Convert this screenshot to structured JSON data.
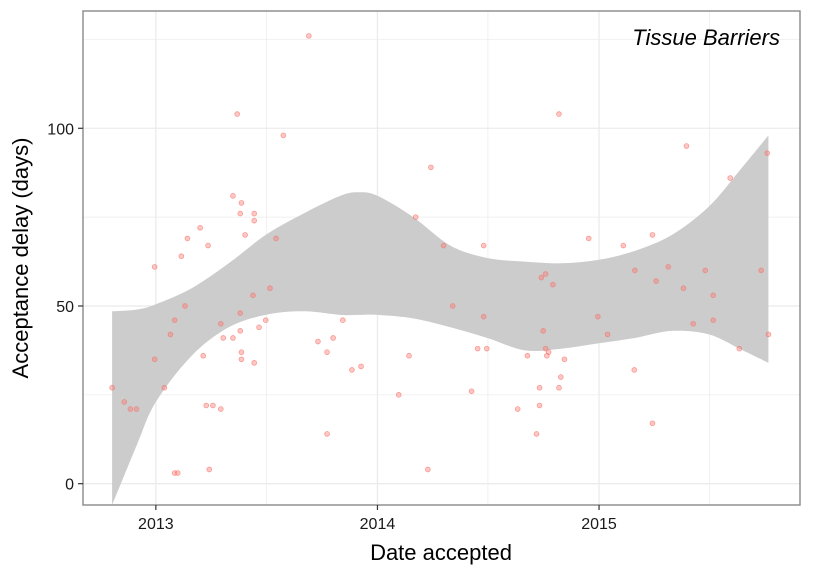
{
  "chart_data": {
    "type": "scatter",
    "title": "",
    "annotation": "Tissue Barriers",
    "xlabel": "Date accepted",
    "ylabel": "Acceptance delay (days)",
    "x_ticks": [
      "2013",
      "2014",
      "2015"
    ],
    "y_ticks": [
      0,
      50,
      100
    ],
    "xlim": [
      "2012-09-03",
      "2015-11-28"
    ],
    "ylim": [
      -6,
      133
    ],
    "grid": true,
    "legend": "none",
    "colors": {
      "points": "#f8766d",
      "ribbon": "#cccccc",
      "panel_border": "#888888",
      "grid": "#ebebeb"
    },
    "points": [
      {
        "x": "2012-10-21",
        "y": 27
      },
      {
        "x": "2012-11-10",
        "y": 23
      },
      {
        "x": "2012-11-20",
        "y": 21
      },
      {
        "x": "2012-11-30",
        "y": 21
      },
      {
        "x": "2012-12-30",
        "y": 61
      },
      {
        "x": "2012-12-30",
        "y": 35
      },
      {
        "x": "2013-01-15",
        "y": 27
      },
      {
        "x": "2013-01-25",
        "y": 42
      },
      {
        "x": "2013-02-01",
        "y": 46
      },
      {
        "x": "2013-02-01",
        "y": 3
      },
      {
        "x": "2013-02-06",
        "y": 3
      },
      {
        "x": "2013-02-12",
        "y": 64
      },
      {
        "x": "2013-02-18",
        "y": 50
      },
      {
        "x": "2013-02-22",
        "y": 69
      },
      {
        "x": "2013-03-15",
        "y": 72
      },
      {
        "x": "2013-03-20",
        "y": 36
      },
      {
        "x": "2013-03-25",
        "y": 22
      },
      {
        "x": "2013-03-28",
        "y": 67
      },
      {
        "x": "2013-03-30",
        "y": 4
      },
      {
        "x": "2013-04-05",
        "y": 22
      },
      {
        "x": "2013-04-18",
        "y": 45
      },
      {
        "x": "2013-04-18",
        "y": 21
      },
      {
        "x": "2013-04-22",
        "y": 41
      },
      {
        "x": "2013-05-08",
        "y": 81
      },
      {
        "x": "2013-05-08",
        "y": 41
      },
      {
        "x": "2013-05-15",
        "y": 104
      },
      {
        "x": "2013-05-20",
        "y": 48
      },
      {
        "x": "2013-05-20",
        "y": 43
      },
      {
        "x": "2013-05-20",
        "y": 76
      },
      {
        "x": "2013-05-22",
        "y": 79
      },
      {
        "x": "2013-05-22",
        "y": 35
      },
      {
        "x": "2013-05-22",
        "y": 37
      },
      {
        "x": "2013-05-28",
        "y": 70
      },
      {
        "x": "2013-06-10",
        "y": 53
      },
      {
        "x": "2013-06-12",
        "y": 76
      },
      {
        "x": "2013-06-12",
        "y": 74
      },
      {
        "x": "2013-06-12",
        "y": 34
      },
      {
        "x": "2013-06-20",
        "y": 44
      },
      {
        "x": "2013-07-01",
        "y": 46
      },
      {
        "x": "2013-07-08",
        "y": 55
      },
      {
        "x": "2013-07-18",
        "y": 69
      },
      {
        "x": "2013-07-30",
        "y": 98
      },
      {
        "x": "2013-09-10",
        "y": 126
      },
      {
        "x": "2013-09-25",
        "y": 40
      },
      {
        "x": "2013-10-10",
        "y": 37
      },
      {
        "x": "2013-10-10",
        "y": 14
      },
      {
        "x": "2013-10-20",
        "y": 41
      },
      {
        "x": "2013-11-05",
        "y": 46
      },
      {
        "x": "2013-11-20",
        "y": 32
      },
      {
        "x": "2013-12-05",
        "y": 33
      },
      {
        "x": "2014-02-05",
        "y": 25
      },
      {
        "x": "2014-02-22",
        "y": 36
      },
      {
        "x": "2014-03-05",
        "y": 75
      },
      {
        "x": "2014-03-25",
        "y": 4
      },
      {
        "x": "2014-03-30",
        "y": 89
      },
      {
        "x": "2014-04-20",
        "y": 67
      },
      {
        "x": "2014-05-05",
        "y": 50
      },
      {
        "x": "2014-06-05",
        "y": 26
      },
      {
        "x": "2014-06-15",
        "y": 38
      },
      {
        "x": "2014-06-25",
        "y": 67
      },
      {
        "x": "2014-06-25",
        "y": 47
      },
      {
        "x": "2014-06-30",
        "y": 38
      },
      {
        "x": "2014-08-20",
        "y": 21
      },
      {
        "x": "2014-09-05",
        "y": 36
      },
      {
        "x": "2014-09-20",
        "y": 14
      },
      {
        "x": "2014-09-25",
        "y": 27
      },
      {
        "x": "2014-09-25",
        "y": 22
      },
      {
        "x": "2014-09-28",
        "y": 58
      },
      {
        "x": "2014-10-01",
        "y": 43
      },
      {
        "x": "2014-10-05",
        "y": 59
      },
      {
        "x": "2014-10-05",
        "y": 38
      },
      {
        "x": "2014-10-07",
        "y": 36
      },
      {
        "x": "2014-10-10",
        "y": 37
      },
      {
        "x": "2014-10-17",
        "y": 56
      },
      {
        "x": "2014-10-27",
        "y": 104
      },
      {
        "x": "2014-10-27",
        "y": 27
      },
      {
        "x": "2014-10-30",
        "y": 30
      },
      {
        "x": "2014-11-05",
        "y": 35
      },
      {
        "x": "2014-12-15",
        "y": 69
      },
      {
        "x": "2014-12-30",
        "y": 47
      },
      {
        "x": "2015-01-15",
        "y": 42
      },
      {
        "x": "2015-02-10",
        "y": 67
      },
      {
        "x": "2015-02-28",
        "y": 32
      },
      {
        "x": "2015-03-01",
        "y": 60
      },
      {
        "x": "2015-03-30",
        "y": 17
      },
      {
        "x": "2015-03-30",
        "y": 70
      },
      {
        "x": "2015-04-05",
        "y": 57
      },
      {
        "x": "2015-04-25",
        "y": 61
      },
      {
        "x": "2015-05-20",
        "y": 55
      },
      {
        "x": "2015-05-25",
        "y": 95
      },
      {
        "x": "2015-06-05",
        "y": 45
      },
      {
        "x": "2015-06-25",
        "y": 60
      },
      {
        "x": "2015-07-08",
        "y": 46
      },
      {
        "x": "2015-07-08",
        "y": 53
      },
      {
        "x": "2015-08-05",
        "y": 86
      },
      {
        "x": "2015-08-20",
        "y": 38
      },
      {
        "x": "2015-09-25",
        "y": 60
      },
      {
        "x": "2015-10-05",
        "y": 93
      },
      {
        "x": "2015-10-07",
        "y": 42
      }
    ],
    "smooth_band": [
      {
        "x": "2012-10-21",
        "lower": -8,
        "upper": 48.5
      },
      {
        "x": "2012-12-01",
        "lower": 11,
        "upper": 49
      },
      {
        "x": "2013-01-01",
        "lower": 23,
        "upper": 50.5
      },
      {
        "x": "2013-03-01",
        "lower": 36,
        "upper": 55
      },
      {
        "x": "2013-05-01",
        "lower": 44,
        "upper": 62
      },
      {
        "x": "2013-07-01",
        "lower": 47.5,
        "upper": 70
      },
      {
        "x": "2013-09-01",
        "lower": 48.5,
        "upper": 76
      },
      {
        "x": "2013-11-01",
        "lower": 47.5,
        "upper": 81
      },
      {
        "x": "2013-12-01",
        "lower": 47.5,
        "upper": 82
      },
      {
        "x": "2014-01-01",
        "lower": 47.5,
        "upper": 81
      },
      {
        "x": "2014-03-01",
        "lower": 46.5,
        "upper": 75
      },
      {
        "x": "2014-05-01",
        "lower": 44,
        "upper": 67
      },
      {
        "x": "2014-07-01",
        "lower": 41,
        "upper": 63.5
      },
      {
        "x": "2014-09-01",
        "lower": 37.5,
        "upper": 62.5
      },
      {
        "x": "2014-11-01",
        "lower": 38,
        "upper": 62
      },
      {
        "x": "2015-01-01",
        "lower": 39.5,
        "upper": 63
      },
      {
        "x": "2015-03-01",
        "lower": 41,
        "upper": 65.5
      },
      {
        "x": "2015-05-01",
        "lower": 43,
        "upper": 70
      },
      {
        "x": "2015-07-01",
        "lower": 42,
        "upper": 78
      },
      {
        "x": "2015-08-20",
        "lower": 38,
        "upper": 88
      },
      {
        "x": "2015-10-07",
        "lower": 34,
        "upper": 98
      }
    ]
  }
}
